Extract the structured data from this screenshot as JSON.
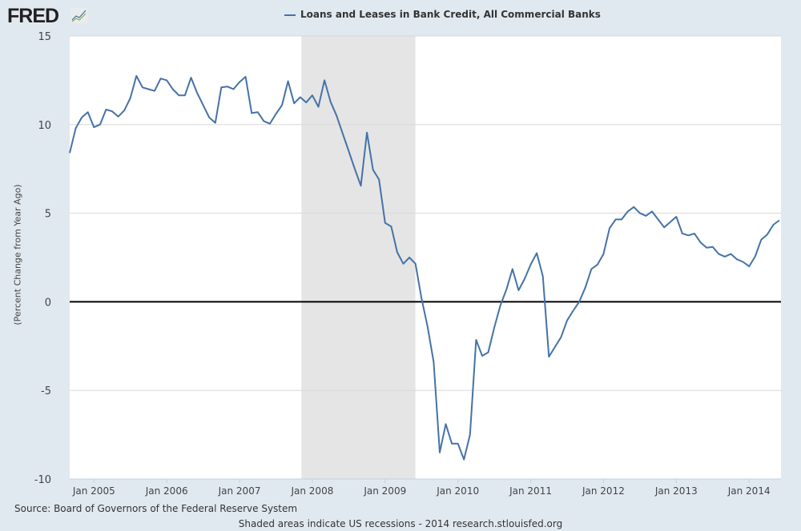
{
  "header": {
    "logo": "FRED",
    "legend_label": "Loans and Leases in Bank Credit, All Commercial Banks"
  },
  "footer": {
    "source": "Source: Board of Governors of the Federal Reserve System",
    "note": "Shaded areas indicate US recessions - 2014 research.stlouisfed.org"
  },
  "colors": {
    "line": "#4572a7",
    "recession": "#e5e5e5",
    "zero": "#000000",
    "grid": "#d8d8d8"
  },
  "chart_data": {
    "type": "line",
    "title": "Loans and Leases in Bank Credit, All Commercial Banks",
    "ylabel": "(Percent Change from Year Ago)",
    "xlabel": "",
    "ylim": [
      -10,
      15
    ],
    "yticks": [
      -10,
      -5,
      0,
      5,
      10,
      15
    ],
    "xtick_labels": [
      "Jan 2005",
      "Jan 2006",
      "Jan 2007",
      "Jan 2008",
      "Jan 2009",
      "Jan 2010",
      "Jan 2011",
      "Jan 2012",
      "Jan 2013",
      "Jan 2014"
    ],
    "start": "2004-09",
    "frequency": "monthly",
    "end": "2014-06",
    "recessions": [
      {
        "start": "2007-12",
        "end": "2009-06"
      }
    ],
    "grid": true,
    "legend": "top-center",
    "series": [
      {
        "name": "Loans and Leases in Bank Credit, All Commercial Banks",
        "values": [
          8.4,
          9.8,
          10.4,
          10.7,
          9.85,
          10.0,
          10.85,
          10.75,
          10.45,
          10.8,
          11.5,
          12.75,
          12.1,
          12.0,
          11.9,
          12.6,
          12.5,
          12.0,
          11.65,
          11.65,
          12.65,
          11.8,
          11.1,
          10.4,
          10.1,
          12.1,
          12.15,
          12.0,
          12.4,
          12.7,
          10.65,
          10.7,
          10.2,
          10.05,
          10.6,
          11.1,
          12.45,
          11.2,
          11.55,
          11.25,
          11.65,
          11.0,
          12.5,
          11.3,
          10.5,
          9.5,
          8.5,
          7.5,
          6.55,
          9.55,
          7.45,
          6.9,
          4.45,
          4.25,
          2.8,
          2.15,
          2.5,
          2.15,
          0.2,
          -1.4,
          -3.4,
          -8.5,
          -6.9,
          -8.0,
          -8.0,
          -8.9,
          -7.5,
          -2.15,
          -3.05,
          -2.85,
          -1.45,
          -0.2,
          0.7,
          1.85,
          0.65,
          1.3,
          2.1,
          2.75,
          1.45,
          -3.1,
          -2.55,
          -2.0,
          -1.05,
          -0.5,
          0.0,
          0.8,
          1.85,
          2.1,
          2.7,
          4.15,
          4.65,
          4.65,
          5.1,
          5.35,
          5.0,
          4.85,
          5.1,
          4.65,
          4.2,
          4.5,
          4.8,
          3.85,
          3.75,
          3.85,
          3.35,
          3.05,
          3.1,
          2.7,
          2.55,
          2.7,
          2.4,
          2.25,
          2.0,
          2.55,
          3.5,
          3.8,
          4.35,
          4.6
        ]
      }
    ]
  }
}
